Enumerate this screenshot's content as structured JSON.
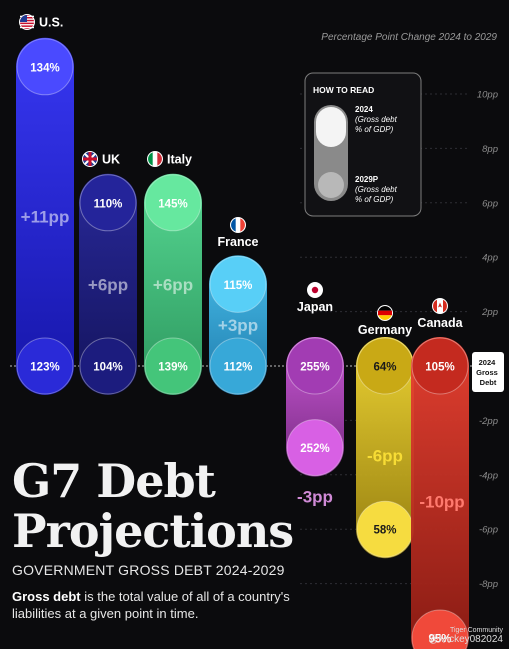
{
  "header_caption": "Percentage Point Change 2024 to 2029",
  "title_line1": "G7 Debt",
  "title_line2": "Projections",
  "subtitle": "GOVERNMENT GROSS DEBT 2024-2029",
  "description_bold": "Gross debt",
  "description_rest": " is the total value of all of a country's liabilities at a given point in time.",
  "how_to_read": {
    "title": "HOW TO READ",
    "label_2024": [
      "2024",
      "(Gross debt",
      "% of GDP)"
    ],
    "label_2029": [
      "2029P",
      "(Gross debt",
      "% of GDP)"
    ]
  },
  "baseline_label": [
    "2024",
    "Gross",
    "Debt"
  ],
  "credit": {
    "line1": "Tiger Community",
    "line2": "@Mickey082024"
  },
  "colors": {
    "background": "#0b0b0d",
    "us": "#2c2cf2",
    "uk": "#1e1e8c",
    "italy": "#4fd98a",
    "france": "#3bb2ea",
    "japan": "#c648d6",
    "germany": "#f0cf2a",
    "canada": "#e03a2f"
  },
  "chart_data": {
    "type": "bar",
    "title": "G7 Debt Projections",
    "xlabel": "",
    "ylabel": "Percentage Point Change 2024 to 2029",
    "ylim": [
      -10,
      10
    ],
    "y_ticks": [
      -8,
      -6,
      -4,
      -2,
      2,
      4,
      6,
      8,
      10
    ],
    "y_tick_labels": [
      "-8pp",
      "-6pp",
      "-4pp",
      "-2pp",
      "2pp",
      "4pp",
      "6pp",
      "8pp",
      "10pp"
    ],
    "categories": [
      "U.S.",
      "UK",
      "Italy",
      "France",
      "Japan",
      "Germany",
      "Canada"
    ],
    "flags": [
      "us-flag-icon",
      "uk-flag-icon",
      "italy-flag-icon",
      "france-flag-icon",
      "japan-flag-icon",
      "germany-flag-icon",
      "canada-flag-icon"
    ],
    "debt_2024": [
      123,
      104,
      139,
      112,
      255,
      64,
      105
    ],
    "debt_2029": [
      134,
      110,
      145,
      115,
      252,
      58,
      95
    ],
    "change_pp": [
      11,
      6,
      6,
      3,
      -3,
      -6,
      -10
    ],
    "change_labels": [
      "+11pp",
      "+6pp",
      "+6pp",
      "+3pp",
      "-3pp",
      "-6pp",
      "-10pp"
    ],
    "debt_2024_labels": [
      "123%",
      "104%",
      "139%",
      "112%",
      "255%",
      "64%",
      "105%"
    ],
    "debt_2029_labels": [
      "134%",
      "110%",
      "145%",
      "115%",
      "252%",
      "58%",
      "95%"
    ],
    "grid": true
  }
}
